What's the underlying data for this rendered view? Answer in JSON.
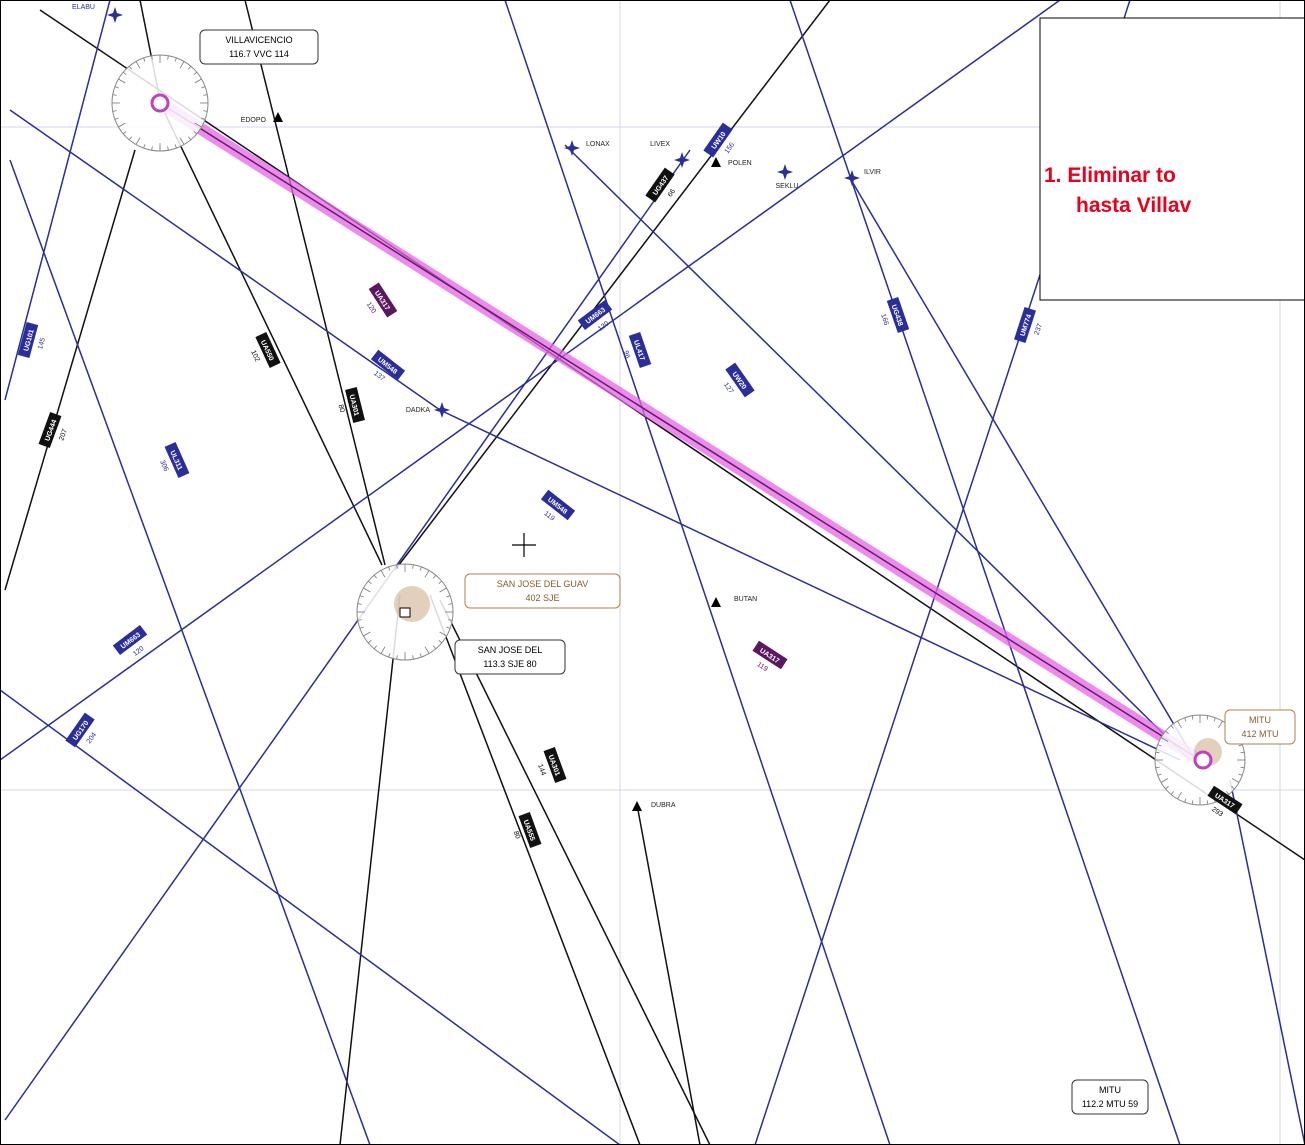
{
  "callout": {
    "lines": [
      "1. Eliminar to",
      "hasta Villav"
    ]
  },
  "navaids": [
    {
      "name": "VILLAVICENCIO",
      "freq": "116.7 VVC 114"
    },
    {
      "name": "SAN JOSE DEL",
      "freq": "113.3 SJE 80"
    },
    {
      "name": "MITU",
      "freq": "112.2 MTU 59"
    }
  ],
  "ndbs": [
    {
      "name": "SAN JOSE DEL GUAV",
      "freq": "402 SJE"
    },
    {
      "name": "MITU",
      "freq": "412 MTU"
    }
  ],
  "waypoints": [
    "ELABU",
    "EDOPO",
    "LONAX",
    "LIVEX",
    "POLEN",
    "SEKLU",
    "ILVIR",
    "DADKA",
    "BUTAN",
    "DUBRA"
  ],
  "airways": [
    {
      "name": "UA317",
      "course": 120
    },
    {
      "name": "UA317",
      "course": 119
    },
    {
      "name": "UA317",
      "course": 293
    },
    {
      "name": "UM548",
      "course": 137
    },
    {
      "name": "UM548",
      "course": 119
    },
    {
      "name": "UM663",
      "course": 120
    },
    {
      "name": "UM663",
      "course": 120
    },
    {
      "name": "UG437",
      "course": 66
    },
    {
      "name": "UW10",
      "course": 156
    },
    {
      "name": "UL417",
      "course": 96
    },
    {
      "name": "UW20",
      "course": 127
    },
    {
      "name": "UG438",
      "course": 166
    },
    {
      "name": "UM774",
      "course": 237
    },
    {
      "name": "UG101",
      "course": 145
    },
    {
      "name": "UG444",
      "course": 207
    },
    {
      "name": "UL311",
      "course": 306
    },
    {
      "name": "UA550",
      "course": 102
    },
    {
      "name": "UA301",
      "course": 80
    },
    {
      "name": "UA555",
      "course": 80
    },
    {
      "name": "UA301",
      "course": 144
    },
    {
      "name": "UG170",
      "course": 204
    }
  ]
}
